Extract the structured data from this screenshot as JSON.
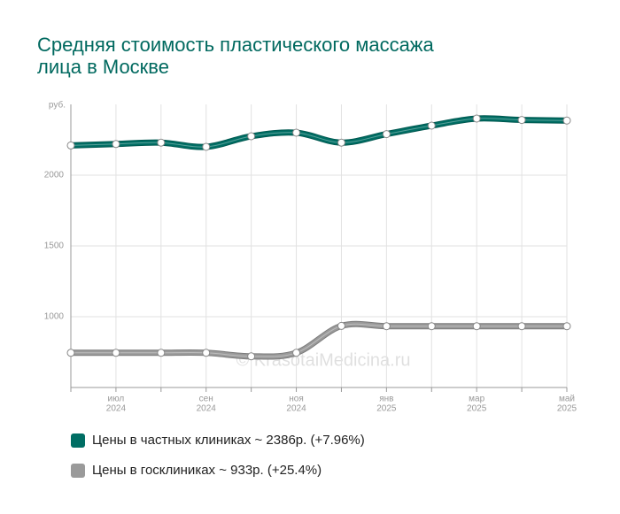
{
  "chart_data": {
    "type": "line",
    "title": [
      "Средняя стоимость пластического массажа",
      "лица в Москве"
    ],
    "y_label": "руб.",
    "watermark": "© KrasotaiMedicina.ru",
    "categories": [
      null,
      [
        "июл",
        "2024"
      ],
      null,
      [
        "сен",
        "2024"
      ],
      null,
      [
        "ноя",
        "2024"
      ],
      null,
      [
        "янв",
        "2025"
      ],
      null,
      [
        "мар",
        "2025"
      ],
      null,
      [
        "май",
        "2025"
      ]
    ],
    "series": [
      {
        "name": "Цены в частных клиниках ~ 2386р. (+7.96%)",
        "color": "#006e64",
        "values": [
          2210,
          2220,
          2230,
          2200,
          2275,
          2300,
          2230,
          2290,
          2350,
          2400,
          2390,
          2386
        ]
      },
      {
        "name": "Цены в госклиниках ~ 933р. (+25.4%)",
        "color": "#9a9a9a",
        "values": [
          745,
          745,
          745,
          745,
          720,
          745,
          935,
          933,
          933,
          933,
          933,
          933
        ]
      }
    ],
    "ylim": [
      500,
      2500
    ],
    "yticks": [
      1000,
      1500,
      2000
    ],
    "grid": true,
    "legend": "bottom"
  }
}
